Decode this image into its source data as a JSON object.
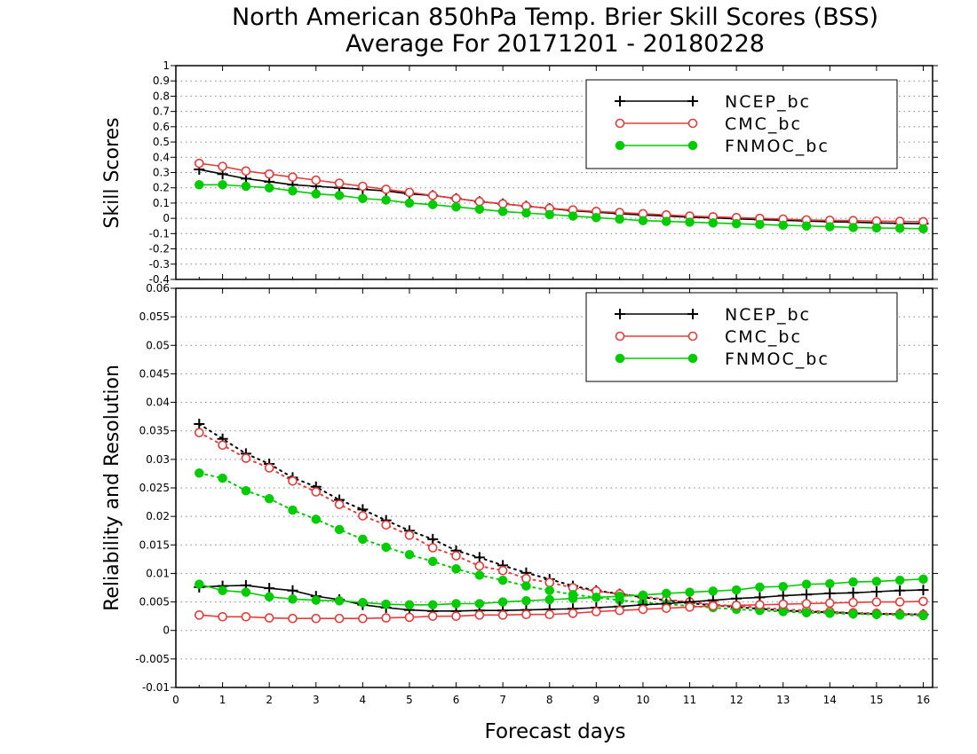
{
  "chart_data": {
    "title_line1": "North American 850hPa Temp. Brier Skill Scores (BSS)",
    "title_line2": "Average For 20171201 - 20180228",
    "xlabel": "Forecast days",
    "x_ticks": [
      "0",
      "1",
      "2",
      "3",
      "4",
      "5",
      "6",
      "7",
      "8",
      "9",
      "10",
      "11",
      "12",
      "13",
      "14",
      "15",
      "16"
    ],
    "xlim": [
      0,
      16.2
    ],
    "x": [
      0.5,
      1,
      1.5,
      2,
      2.5,
      3,
      3.5,
      4,
      4.5,
      5,
      5.5,
      6,
      6.5,
      7,
      7.5,
      8,
      8.5,
      9,
      9.5,
      10,
      10.5,
      11,
      11.5,
      12,
      12.5,
      13,
      13.5,
      14,
      14.5,
      15,
      15.5,
      16
    ],
    "colors": {
      "NCEP_bc": "#000000",
      "CMC_bc": "#e83b3b",
      "FNMOC_bc": "#00cc00"
    },
    "panels": [
      {
        "type": "line",
        "ylabel": "Skill Scores",
        "ylim": [
          -0.4,
          1
        ],
        "y_ticks": [
          "-0.4",
          "-0.3",
          "-0.2",
          "-0.1",
          "0",
          "0.1",
          "0.2",
          "0.3",
          "0.4",
          "0.5",
          "0.6",
          "0.7",
          "0.8",
          "0.9",
          "1"
        ],
        "grid": "horizontal-dotted",
        "legend": "top-right",
        "series": [
          {
            "name": "NCEP_bc",
            "marker": "plus",
            "style": "solid",
            "values": [
              0.32,
              0.29,
              0.26,
              0.24,
              0.22,
              0.21,
              0.2,
              0.19,
              0.18,
              0.16,
              0.15,
              0.13,
              0.11,
              0.095,
              0.08,
              0.065,
              0.05,
              0.04,
              0.03,
              0.022,
              0.015,
              0.008,
              0.003,
              -0.003,
              -0.008,
              -0.013,
              -0.018,
              -0.022,
              -0.025,
              -0.03,
              -0.033,
              -0.035
            ]
          },
          {
            "name": "CMC_bc",
            "marker": "circle-open",
            "style": "solid",
            "values": [
              0.36,
              0.34,
              0.31,
              0.29,
              0.27,
              0.25,
              0.23,
              0.21,
              0.19,
              0.17,
              0.15,
              0.13,
              0.11,
              0.095,
              0.08,
              0.065,
              0.055,
              0.045,
              0.038,
              0.03,
              0.022,
              0.015,
              0.01,
              0.005,
              0,
              -0.005,
              -0.01,
              -0.013,
              -0.015,
              -0.018,
              -0.02,
              -0.022
            ]
          },
          {
            "name": "FNMOC_bc",
            "marker": "circle-filled",
            "style": "solid",
            "values": [
              0.22,
              0.22,
              0.21,
              0.2,
              0.18,
              0.16,
              0.15,
              0.13,
              0.12,
              0.1,
              0.09,
              0.075,
              0.06,
              0.045,
              0.035,
              0.025,
              0.015,
              0.005,
              -0.005,
              -0.015,
              -0.02,
              -0.025,
              -0.03,
              -0.035,
              -0.04,
              -0.045,
              -0.05,
              -0.055,
              -0.06,
              -0.063,
              -0.065,
              -0.068
            ]
          }
        ]
      },
      {
        "type": "line",
        "ylabel": "Reliability and Resolution",
        "ylim": [
          -0.01,
          0.06
        ],
        "y_ticks": [
          "-0.01",
          "-0.005",
          "0",
          "0.005",
          "0.01",
          "0.015",
          "0.02",
          "0.025",
          "0.03",
          "0.035",
          "0.04",
          "0.045",
          "0.05",
          "0.055",
          "0.06"
        ],
        "grid": "horizontal-dotted",
        "legend": "top-right",
        "series": [
          {
            "name": "NCEP_bc",
            "marker": "plus",
            "style": "dotted",
            "values": [
              0.0362,
              0.0336,
              0.031,
              0.0292,
              0.0268,
              0.0252,
              0.0229,
              0.0212,
              0.0193,
              0.0175,
              0.016,
              0.014,
              0.0128,
              0.0114,
              0.0101,
              0.009,
              0.0078,
              0.007,
              0.0064,
              0.0058,
              0.0053,
              0.0048,
              0.0044,
              0.0041,
              0.0038,
              0.0035,
              0.0033,
              0.0032,
              0.003,
              0.0029,
              0.0029,
              0.0028
            ]
          },
          {
            "name": "CMC_bc",
            "marker": "circle-open",
            "style": "dotted",
            "values": [
              0.0347,
              0.0325,
              0.0302,
              0.0285,
              0.0262,
              0.0243,
              0.0221,
              0.0201,
              0.0185,
              0.0167,
              0.0145,
              0.0131,
              0.0113,
              0.0105,
              0.0091,
              0.0084,
              0.0075,
              0.0069,
              0.0064,
              0.006,
              0.0054,
              0.005,
              0.0045,
              0.0043,
              0.004,
              0.0037,
              0.0035,
              0.0033,
              0.0031,
              0.003,
              0.0029,
              0.0028
            ]
          },
          {
            "name": "FNMOC_bc",
            "marker": "circle-filled",
            "style": "dotted",
            "values": [
              0.0276,
              0.0267,
              0.0245,
              0.0231,
              0.0211,
              0.0195,
              0.0177,
              0.016,
              0.0146,
              0.0133,
              0.0121,
              0.0108,
              0.0097,
              0.0088,
              0.0078,
              0.007,
              0.0063,
              0.0058,
              0.0053,
              0.0049,
              0.0046,
              0.0043,
              0.004,
              0.0037,
              0.0035,
              0.0033,
              0.0031,
              0.003,
              0.0029,
              0.0028,
              0.0027,
              0.0026
            ]
          },
          {
            "name": "NCEP_bc",
            "marker": "plus",
            "style": "solid",
            "values": [
              0.0076,
              0.0078,
              0.0079,
              0.0074,
              0.007,
              0.006,
              0.0054,
              0.0045,
              0.004,
              0.0036,
              0.0034,
              0.0034,
              0.0035,
              0.0035,
              0.0036,
              0.0037,
              0.0038,
              0.004,
              0.0042,
              0.0045,
              0.0047,
              0.005,
              0.0053,
              0.0056,
              0.0058,
              0.0061,
              0.0063,
              0.0065,
              0.0066,
              0.0068,
              0.007,
              0.0071
            ]
          },
          {
            "name": "CMC_bc",
            "marker": "circle-open",
            "style": "solid",
            "values": [
              0.0027,
              0.0024,
              0.0024,
              0.0022,
              0.0021,
              0.0021,
              0.0021,
              0.0021,
              0.0022,
              0.0023,
              0.0025,
              0.0025,
              0.0027,
              0.0027,
              0.0028,
              0.0028,
              0.003,
              0.0033,
              0.0035,
              0.0037,
              0.0039,
              0.0041,
              0.0043,
              0.0044,
              0.0045,
              0.0046,
              0.0047,
              0.0048,
              0.0049,
              0.005,
              0.005,
              0.0051
            ]
          },
          {
            "name": "FNMOC_bc",
            "marker": "circle-filled",
            "style": "solid",
            "values": [
              0.0081,
              0.007,
              0.0067,
              0.0059,
              0.0055,
              0.0053,
              0.0052,
              0.0049,
              0.0046,
              0.0045,
              0.0045,
              0.0047,
              0.0047,
              0.005,
              0.0052,
              0.0054,
              0.0056,
              0.0058,
              0.006,
              0.0062,
              0.0065,
              0.0067,
              0.0069,
              0.0071,
              0.0076,
              0.0077,
              0.0081,
              0.0082,
              0.0085,
              0.0086,
              0.0088,
              0.009
            ]
          }
        ]
      }
    ]
  }
}
